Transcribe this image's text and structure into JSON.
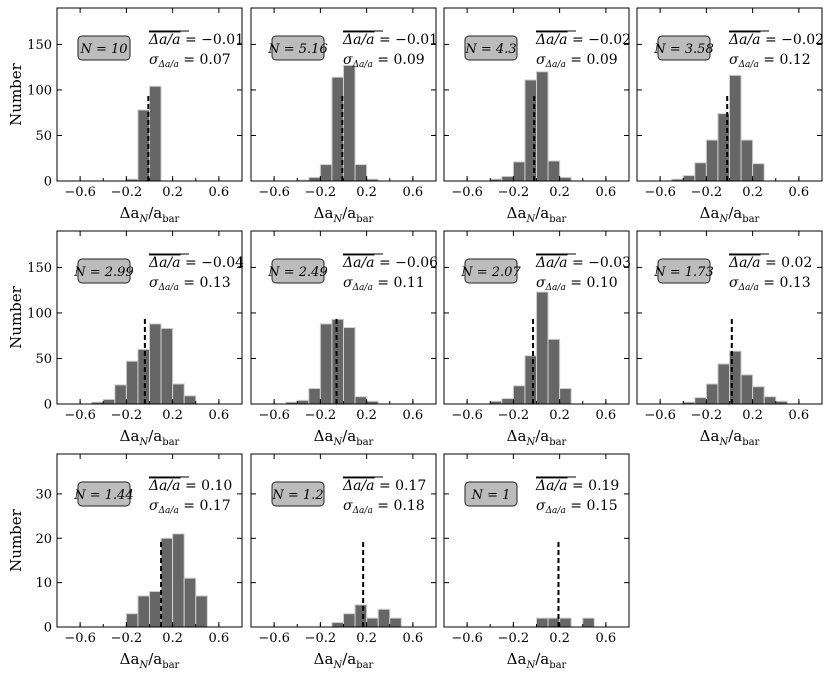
{
  "figure": {
    "ylabel": "Number",
    "xlabel_main": "Δa",
    "xlabel_sub": "N",
    "xlabel_div": "/a",
    "xlabel_sub2": "bar",
    "mean_label": "Δa/a",
    "sigma_symbol": "σ",
    "sigma_sub": "Δa/a",
    "colors": {
      "bar": "#666666",
      "bar_edge": "#cfcfcf",
      "box_fill": "#bcbcbc",
      "dash": "#000000"
    }
  },
  "chart_data": [
    {
      "type": "bar",
      "panel": 1,
      "N_label": "N = 10",
      "mean": "= −0.01",
      "sigma": "= 0.07",
      "mean_value": -0.01,
      "xlim": [
        -0.8,
        0.8
      ],
      "ylim": [
        0,
        190
      ],
      "xticks": [
        -0.6,
        -0.2,
        0.2,
        0.6
      ],
      "xtick_labels": [
        "−0.6",
        "−0.2",
        "0.2",
        "0.6"
      ],
      "yticks": [
        0,
        50,
        100,
        150
      ],
      "ytick_labels": [
        "0",
        "50",
        "100",
        "150"
      ],
      "bin_edges": [
        -0.3,
        -0.2,
        -0.1,
        0.0,
        0.1,
        0.2,
        0.3
      ],
      "values": [
        0,
        2,
        78,
        104,
        0,
        0
      ]
    },
    {
      "type": "bar",
      "panel": 2,
      "N_label": "N = 5.16",
      "mean": "= −0.01",
      "sigma": "= 0.09",
      "mean_value": -0.01,
      "xlim": [
        -0.8,
        0.8
      ],
      "ylim": [
        0,
        190
      ],
      "xticks": [
        -0.6,
        -0.2,
        0.2,
        0.6
      ],
      "xtick_labels": [
        "−0.6",
        "−0.2",
        "0.2",
        "0.6"
      ],
      "yticks": [
        0,
        50,
        100,
        150
      ],
      "ytick_labels": [
        "0",
        "50",
        "100",
        "150"
      ],
      "bin_edges": [
        -0.4,
        -0.3,
        -0.2,
        -0.1,
        0.0,
        0.1,
        0.2,
        0.3
      ],
      "values": [
        1,
        4,
        18,
        114,
        127,
        18,
        2
      ]
    },
    {
      "type": "bar",
      "panel": 3,
      "N_label": "N = 4.3",
      "mean": "= −0.02",
      "sigma": "= 0.09",
      "mean_value": -0.02,
      "xlim": [
        -0.8,
        0.8
      ],
      "ylim": [
        0,
        190
      ],
      "xticks": [
        -0.6,
        -0.2,
        0.2,
        0.6
      ],
      "xtick_labels": [
        "−0.6",
        "−0.2",
        "0.2",
        "0.6"
      ],
      "yticks": [
        0,
        50,
        100,
        150
      ],
      "ytick_labels": [
        "0",
        "50",
        "100",
        "150"
      ],
      "bin_edges": [
        -0.4,
        -0.3,
        -0.2,
        -0.1,
        0.0,
        0.1,
        0.2,
        0.3
      ],
      "values": [
        2,
        5,
        21,
        111,
        120,
        22,
        4
      ]
    },
    {
      "type": "bar",
      "panel": 4,
      "N_label": "N = 3.58",
      "mean": "= −0.02",
      "sigma": "= 0.12",
      "mean_value": -0.02,
      "xlim": [
        -0.8,
        0.8
      ],
      "ylim": [
        0,
        190
      ],
      "xticks": [
        -0.6,
        -0.2,
        0.2,
        0.6
      ],
      "xtick_labels": [
        "−0.6",
        "−0.2",
        "0.2",
        "0.6"
      ],
      "yticks": [
        0,
        50,
        100,
        150
      ],
      "ytick_labels": [
        "0",
        "50",
        "100",
        "150"
      ],
      "bin_edges": [
        -0.5,
        -0.4,
        -0.3,
        -0.2,
        -0.1,
        0.0,
        0.1,
        0.2,
        0.3
      ],
      "values": [
        2,
        6,
        20,
        45,
        74,
        116,
        45,
        19,
        3
      ]
    },
    {
      "type": "bar",
      "panel": 5,
      "N_label": "N = 2.99",
      "mean": "= −0.04",
      "sigma": "= 0.13",
      "mean_value": -0.04,
      "xlim": [
        -0.8,
        0.8
      ],
      "ylim": [
        0,
        190
      ],
      "xticks": [
        -0.6,
        -0.2,
        0.2,
        0.6
      ],
      "xtick_labels": [
        "−0.6",
        "−0.2",
        "0.2",
        "0.6"
      ],
      "yticks": [
        0,
        50,
        100,
        150
      ],
      "ytick_labels": [
        "0",
        "50",
        "100",
        "150"
      ],
      "bin_edges": [
        -0.5,
        -0.4,
        -0.3,
        -0.2,
        -0.1,
        0.0,
        0.1,
        0.2,
        0.3,
        0.4
      ],
      "values": [
        2,
        5,
        21,
        47,
        60,
        88,
        83,
        22,
        9,
        3
      ]
    },
    {
      "type": "bar",
      "panel": 6,
      "N_label": "N = 2.49",
      "mean": "= −0.06",
      "sigma": "= 0.11",
      "mean_value": -0.06,
      "xlim": [
        -0.8,
        0.8
      ],
      "ylim": [
        0,
        190
      ],
      "xticks": [
        -0.6,
        -0.2,
        0.2,
        0.6
      ],
      "xtick_labels": [
        "−0.6",
        "−0.2",
        "0.2",
        "0.6"
      ],
      "yticks": [
        0,
        50,
        100,
        150
      ],
      "ytick_labels": [
        "0",
        "50",
        "100",
        "150"
      ],
      "bin_edges": [
        -0.5,
        -0.4,
        -0.3,
        -0.2,
        -0.1,
        0.0,
        0.1,
        0.2,
        0.3
      ],
      "values": [
        2,
        4,
        17,
        88,
        93,
        84,
        8,
        3,
        2
      ]
    },
    {
      "type": "bar",
      "panel": 7,
      "N_label": "N = 2.07",
      "mean": "= −0.03",
      "sigma": "= 0.10",
      "mean_value": -0.03,
      "xlim": [
        -0.8,
        0.8
      ],
      "ylim": [
        0,
        190
      ],
      "xticks": [
        -0.6,
        -0.2,
        0.2,
        0.6
      ],
      "xtick_labels": [
        "−0.6",
        "−0.2",
        "0.2",
        "0.6"
      ],
      "yticks": [
        0,
        50,
        100,
        150
      ],
      "ytick_labels": [
        "0",
        "50",
        "100",
        "150"
      ],
      "bin_edges": [
        -0.4,
        -0.3,
        -0.2,
        -0.1,
        0.0,
        0.1,
        0.2,
        0.3
      ],
      "values": [
        3,
        6,
        20,
        53,
        123,
        71,
        17,
        5
      ]
    },
    {
      "type": "bar",
      "panel": 8,
      "N_label": "N = 1.73",
      "mean": "= 0.02",
      "sigma": "= 0.13",
      "mean_value": 0.02,
      "xlim": [
        -0.8,
        0.8
      ],
      "ylim": [
        0,
        190
      ],
      "xticks": [
        -0.6,
        -0.2,
        0.2,
        0.6
      ],
      "xtick_labels": [
        "−0.6",
        "−0.2",
        "0.2",
        "0.6"
      ],
      "yticks": [
        0,
        50,
        100,
        150
      ],
      "ytick_labels": [
        "0",
        "50",
        "100",
        "150"
      ],
      "bin_edges": [
        -0.4,
        -0.3,
        -0.2,
        -0.1,
        0.0,
        0.1,
        0.2,
        0.3,
        0.4,
        0.5
      ],
      "values": [
        2,
        7,
        22,
        44,
        58,
        32,
        19,
        8,
        3,
        2
      ]
    },
    {
      "type": "bar",
      "panel": 9,
      "N_label": "N = 1.44",
      "mean": "= 0.10",
      "sigma": "= 0.17",
      "mean_value": 0.1,
      "xlim": [
        -0.8,
        0.8
      ],
      "ylim": [
        0,
        39
      ],
      "xticks": [
        -0.6,
        -0.2,
        0.2,
        0.6
      ],
      "xtick_labels": [
        "−0.6",
        "−0.2",
        "0.2",
        "0.6"
      ],
      "yticks": [
        0,
        10,
        20,
        30
      ],
      "ytick_labels": [
        "0",
        "10",
        "20",
        "30"
      ],
      "bin_edges": [
        -0.3,
        -0.2,
        -0.1,
        0.0,
        0.1,
        0.2,
        0.3,
        0.4,
        0.5
      ],
      "values": [
        0,
        3,
        7,
        8,
        20,
        21,
        11,
        7,
        4
      ]
    },
    {
      "type": "bar",
      "panel": 10,
      "N_label": "N = 1.2",
      "mean": "= 0.17",
      "sigma": "= 0.18",
      "mean_value": 0.17,
      "xlim": [
        -0.8,
        0.8
      ],
      "ylim": [
        0,
        39
      ],
      "xticks": [
        -0.6,
        -0.2,
        0.2,
        0.6
      ],
      "xtick_labels": [
        "−0.6",
        "−0.2",
        "0.2",
        "0.6"
      ],
      "yticks": [
        0,
        10,
        20,
        30
      ],
      "ytick_labels": [
        "0",
        "10",
        "20",
        "30"
      ],
      "bin_edges": [
        -0.1,
        0.0,
        0.1,
        0.2,
        0.3,
        0.4,
        0.5
      ],
      "values": [
        1,
        3,
        5,
        2,
        4,
        2
      ]
    },
    {
      "type": "bar",
      "panel": 11,
      "N_label": "N = 1",
      "mean": "= 0.19",
      "sigma": "= 0.15",
      "mean_value": 0.19,
      "xlim": [
        -0.8,
        0.8
      ],
      "ylim": [
        0,
        39
      ],
      "xticks": [
        -0.6,
        -0.2,
        0.2,
        0.6
      ],
      "xtick_labels": [
        "−0.6",
        "−0.2",
        "0.2",
        "0.6"
      ],
      "yticks": [
        0,
        10,
        20,
        30
      ],
      "ytick_labels": [
        "0",
        "10",
        "20",
        "30"
      ],
      "bin_edges": [
        0.0,
        0.1,
        0.2,
        0.3,
        0.4,
        0.5
      ],
      "values": [
        2,
        2,
        2,
        0,
        2
      ]
    }
  ]
}
